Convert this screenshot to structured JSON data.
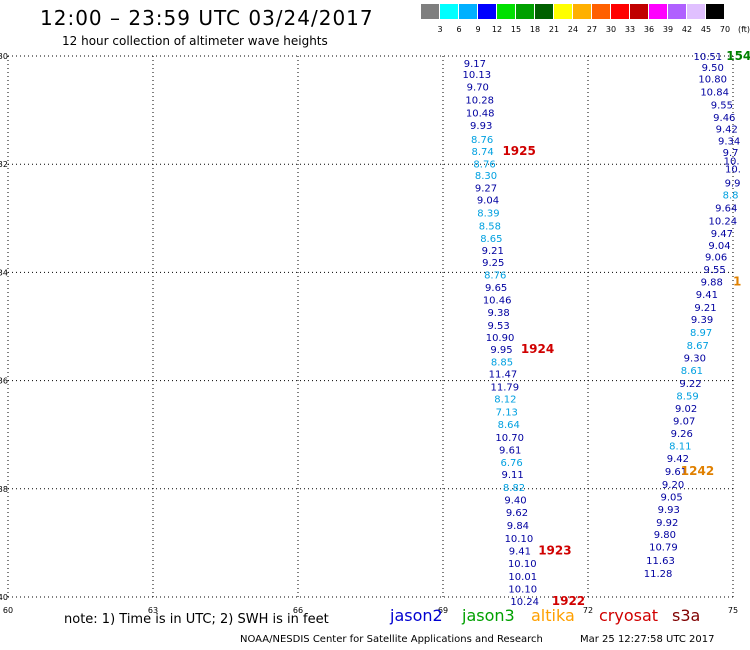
{
  "title": "12:00 – 23:59 UTC 03/24/2017",
  "subtitle": "12 hour collection of altimeter wave heights",
  "legend": {
    "colors": [
      "#7f7f7f",
      "#00ffff",
      "#00b0ff",
      "#0000ff",
      "#00e000",
      "#00a000",
      "#006000",
      "#ffff00",
      "#ffb000",
      "#ff6000",
      "#ff0000",
      "#c00000",
      "#ff00ff",
      "#b060ff",
      "#e0c0ff",
      "#000000"
    ],
    "labels": [
      "3",
      "6",
      "9",
      "12",
      "15",
      "18",
      "21",
      "24",
      "27",
      "30",
      "33",
      "36",
      "39",
      "42",
      "45",
      "70",
      "(ft)"
    ]
  },
  "chart_data": {
    "type": "scatter",
    "x_ticks": [
      "60",
      "63",
      "66",
      "69",
      "72",
      "75"
    ],
    "y_ticks": [
      "-30",
      "-32",
      "-34",
      "-36",
      "-38",
      "-40"
    ],
    "xlim": [
      60,
      75
    ],
    "ylim": [
      -40,
      -30
    ],
    "grid": true,
    "track_left": [
      {
        "v": "9.17",
        "c": "#0000a0",
        "x": 69.66,
        "y": -30.13
      },
      {
        "v": "10.13",
        "c": "#0000a0",
        "x": 69.7,
        "y": -30.33
      },
      {
        "v": "9.70",
        "c": "#0000a0",
        "x": 69.72,
        "y": -30.56
      },
      {
        "v": "10.28",
        "c": "#0000a0",
        "x": 69.76,
        "y": -30.8
      },
      {
        "v": "10.48",
        "c": "#0000a0",
        "x": 69.77,
        "y": -31.04
      },
      {
        "v": "9.93",
        "c": "#0000a0",
        "x": 69.79,
        "y": -31.28
      },
      {
        "v": "8.76",
        "c": "#00a0e0",
        "x": 69.81,
        "y": -31.53
      },
      {
        "v": "8.74",
        "c": "#00a0e0",
        "x": 69.82,
        "y": -31.76
      },
      {
        "v": "8.76",
        "c": "#00a0e0",
        "x": 69.86,
        "y": -31.99
      },
      {
        "v": "8.30",
        "c": "#00a0e0",
        "x": 69.89,
        "y": -32.2
      },
      {
        "v": "9.27",
        "c": "#0000a0",
        "x": 69.89,
        "y": -32.43
      },
      {
        "v": "9.04",
        "c": "#0000a0",
        "x": 69.93,
        "y": -32.65
      },
      {
        "v": "8.39",
        "c": "#00a0e0",
        "x": 69.94,
        "y": -32.89
      },
      {
        "v": "8.58",
        "c": "#00a0e0",
        "x": 69.97,
        "y": -33.13
      },
      {
        "v": "8.65",
        "c": "#00a0e0",
        "x": 70.0,
        "y": -33.36
      },
      {
        "v": "9.21",
        "c": "#0000a0",
        "x": 70.03,
        "y": -33.59
      },
      {
        "v": "9.25",
        "c": "#0000a0",
        "x": 70.04,
        "y": -33.81
      },
      {
        "v": "8.76",
        "c": "#00a0e0",
        "x": 70.08,
        "y": -34.04
      },
      {
        "v": "9.65",
        "c": "#0000a0",
        "x": 70.1,
        "y": -34.27
      },
      {
        "v": "10.46",
        "c": "#0000a0",
        "x": 70.12,
        "y": -34.5
      },
      {
        "v": "9.38",
        "c": "#0000a0",
        "x": 70.15,
        "y": -34.73
      },
      {
        "v": "9.53",
        "c": "#0000a0",
        "x": 70.15,
        "y": -34.97
      },
      {
        "v": "10.90",
        "c": "#0000a0",
        "x": 70.18,
        "y": -35.19
      },
      {
        "v": "9.95",
        "c": "#0000a0",
        "x": 70.21,
        "y": -35.42
      },
      {
        "v": "8.85",
        "c": "#00a0e0",
        "x": 70.22,
        "y": -35.65
      },
      {
        "v": "11.47",
        "c": "#0000a0",
        "x": 70.24,
        "y": -35.87
      },
      {
        "v": "11.79",
        "c": "#0000a0",
        "x": 70.28,
        "y": -36.11
      },
      {
        "v": "8.12",
        "c": "#00a0e0",
        "x": 70.29,
        "y": -36.33
      },
      {
        "v": "7.13",
        "c": "#00a0e0",
        "x": 70.32,
        "y": -36.57
      },
      {
        "v": "8.64",
        "c": "#00a0e0",
        "x": 70.36,
        "y": -36.8
      },
      {
        "v": "10.70",
        "c": "#0000a0",
        "x": 70.38,
        "y": -37.04
      },
      {
        "v": "9.61",
        "c": "#0000a0",
        "x": 70.39,
        "y": -37.27
      },
      {
        "v": "6.76",
        "c": "#00a0e0",
        "x": 70.42,
        "y": -37.5
      },
      {
        "v": "9.11",
        "c": "#0000a0",
        "x": 70.44,
        "y": -37.73
      },
      {
        "v": "8.82",
        "c": "#00a0e0",
        "x": 70.47,
        "y": -37.97
      },
      {
        "v": "9.40",
        "c": "#0000a0",
        "x": 70.5,
        "y": -38.2
      },
      {
        "v": "9.62",
        "c": "#0000a0",
        "x": 70.53,
        "y": -38.43
      },
      {
        "v": "9.84",
        "c": "#0000a0",
        "x": 70.55,
        "y": -38.67
      },
      {
        "v": "10.10",
        "c": "#0000a0",
        "x": 70.57,
        "y": -38.91
      },
      {
        "v": "9.41",
        "c": "#0000a0",
        "x": 70.59,
        "y": -39.14
      },
      {
        "v": "10.10",
        "c": "#0000a0",
        "x": 70.64,
        "y": -39.37
      },
      {
        "v": "10.01",
        "c": "#0000a0",
        "x": 70.65,
        "y": -39.61
      },
      {
        "v": "10.10",
        "c": "#0000a0",
        "x": 70.65,
        "y": -39.84
      },
      {
        "v": "10.24",
        "c": "#0000a0",
        "x": 70.69,
        "y": -40.07
      }
    ],
    "track_right": [
      {
        "v": "10.51",
        "c": "#0000a0",
        "x": 74.48,
        "y": -30.0
      },
      {
        "v": "9.50",
        "c": "#0000a0",
        "x": 74.58,
        "y": -30.2
      },
      {
        "v": "10.80",
        "c": "#0000a0",
        "x": 74.58,
        "y": -30.42
      },
      {
        "v": "10.84",
        "c": "#0000a0",
        "x": 74.62,
        "y": -30.66
      },
      {
        "v": "9.55",
        "c": "#0000a0",
        "x": 74.77,
        "y": -30.9
      },
      {
        "v": "9.46",
        "c": "#0000a0",
        "x": 74.82,
        "y": -31.13
      },
      {
        "v": "9.42",
        "c": "#0000a0",
        "x": 74.87,
        "y": -31.34
      },
      {
        "v": "9.34",
        "c": "#0000a0",
        "x": 74.92,
        "y": -31.56
      },
      {
        "v": "9.7",
        "c": "#0000a0",
        "x": 74.95,
        "y": -31.77
      },
      {
        "v": "10.",
        "c": "#0000a0",
        "x": 74.97,
        "y": -31.93
      },
      {
        "v": "10.",
        "c": "#0000a0",
        "x": 75.0,
        "y": -32.08
      },
      {
        "v": "9.9",
        "c": "#0000a0",
        "x": 74.99,
        "y": -32.34
      },
      {
        "v": "8.8",
        "c": "#00a0e0",
        "x": 74.95,
        "y": -32.56
      },
      {
        "v": "9.64",
        "c": "#0000a0",
        "x": 74.86,
        "y": -32.8
      },
      {
        "v": "10.24",
        "c": "#0000a0",
        "x": 74.79,
        "y": -33.04
      },
      {
        "v": "9.47",
        "c": "#0000a0",
        "x": 74.77,
        "y": -33.27
      },
      {
        "v": "9.04",
        "c": "#0000a0",
        "x": 74.72,
        "y": -33.49
      },
      {
        "v": "9.06",
        "c": "#0000a0",
        "x": 74.65,
        "y": -33.71
      },
      {
        "v": "9.55",
        "c": "#0000a0",
        "x": 74.62,
        "y": -33.94
      },
      {
        "v": "9.88",
        "c": "#0000a0",
        "x": 74.56,
        "y": -34.17
      },
      {
        "v": "9.41",
        "c": "#0000a0",
        "x": 74.46,
        "y": -34.4
      },
      {
        "v": "9.21",
        "c": "#0000a0",
        "x": 74.43,
        "y": -34.64
      },
      {
        "v": "9.39",
        "c": "#0000a0",
        "x": 74.36,
        "y": -34.86
      },
      {
        "v": "8.97",
        "c": "#00a0e0",
        "x": 74.34,
        "y": -35.1
      },
      {
        "v": "8.67",
        "c": "#00a0e0",
        "x": 74.27,
        "y": -35.34
      },
      {
        "v": "9.30",
        "c": "#0000a0",
        "x": 74.21,
        "y": -35.57
      },
      {
        "v": "8.61",
        "c": "#00a0e0",
        "x": 74.15,
        "y": -35.8
      },
      {
        "v": "9.22",
        "c": "#0000a0",
        "x": 74.12,
        "y": -36.04
      },
      {
        "v": "8.59",
        "c": "#00a0e0",
        "x": 74.06,
        "y": -36.28
      },
      {
        "v": "9.02",
        "c": "#0000a0",
        "x": 74.03,
        "y": -36.51
      },
      {
        "v": "9.07",
        "c": "#0000a0",
        "x": 73.99,
        "y": -36.74
      },
      {
        "v": "9.26",
        "c": "#0000a0",
        "x": 73.94,
        "y": -36.97
      },
      {
        "v": "8.11",
        "c": "#00a0e0",
        "x": 73.91,
        "y": -37.2
      },
      {
        "v": "9.42",
        "c": "#0000a0",
        "x": 73.86,
        "y": -37.43
      },
      {
        "v": "9.61",
        "c": "#0000a0",
        "x": 73.82,
        "y": -37.67
      },
      {
        "v": "9.20",
        "c": "#0000a0",
        "x": 73.76,
        "y": -37.91
      },
      {
        "v": "9.05",
        "c": "#0000a0",
        "x": 73.73,
        "y": -38.14
      },
      {
        "v": "9.93",
        "c": "#0000a0",
        "x": 73.67,
        "y": -38.37
      },
      {
        "v": "9.92",
        "c": "#0000a0",
        "x": 73.64,
        "y": -38.61
      },
      {
        "v": "9.80",
        "c": "#0000a0",
        "x": 73.59,
        "y": -38.84
      },
      {
        "v": "10.79",
        "c": "#0000a0",
        "x": 73.56,
        "y": -39.07
      },
      {
        "v": "11.63",
        "c": "#0000a0",
        "x": 73.5,
        "y": -39.32
      },
      {
        "v": "11.28",
        "c": "#0000a0",
        "x": 73.45,
        "y": -39.56
      }
    ],
    "time_marks": [
      {
        "t": "1925",
        "c": "#d00000",
        "x": 70.23,
        "y": -31.76
      },
      {
        "t": "1924",
        "c": "#d00000",
        "x": 70.61,
        "y": -35.42
      },
      {
        "t": "1923",
        "c": "#d00000",
        "x": 70.97,
        "y": -39.14
      },
      {
        "t": "1922",
        "c": "#d00000",
        "x": 71.25,
        "y": -40.07
      },
      {
        "t": "1242",
        "c": "#e08000",
        "x": 73.92,
        "y": -37.67
      },
      {
        "t": "154",
        "c": "#008000",
        "x": 74.86,
        "y": -30.0
      },
      {
        "t": "1",
        "c": "#e08000",
        "x": 75.0,
        "y": -34.17
      }
    ]
  },
  "note": "note:  1) Time is in UTC;  2) SWH is in feet",
  "satellites": [
    {
      "name": "jason2",
      "color": "#0000d0"
    },
    {
      "name": "jason3",
      "color": "#00a000"
    },
    {
      "name": "altika",
      "color": "#ffa000"
    },
    {
      "name": "cryosat",
      "color": "#d00000"
    },
    {
      "name": "s3a",
      "color": "#800000"
    }
  ],
  "credit": "NOAA/NESDIS Center for Satellite Applications and Research",
  "timestamp": "Mar 25 12:27:58 UTC 2017"
}
